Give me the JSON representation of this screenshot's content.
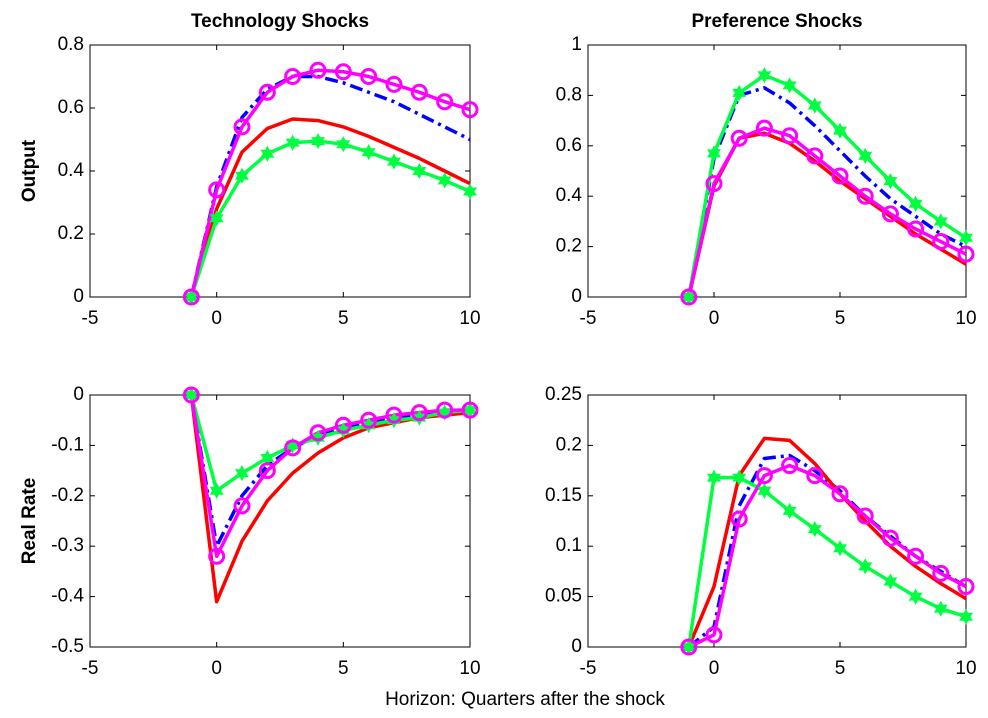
{
  "chart_data": [
    {
      "type": "line",
      "title": "Technology Shocks",
      "ylabel": "Output",
      "x": [
        -1,
        0,
        1,
        2,
        3,
        4,
        5,
        6,
        7,
        8,
        9,
        10
      ],
      "xlim": [
        -5,
        10
      ],
      "xticks": [
        -5,
        0,
        5,
        10
      ],
      "ylim": [
        0,
        0.8
      ],
      "yticks": [
        0,
        0.2,
        0.4,
        0.6,
        0.8
      ],
      "series": [
        {
          "color": "#0000ff",
          "dash": "dashdot",
          "values": [
            0,
            0.35,
            0.57,
            0.66,
            0.7,
            0.7,
            0.68,
            0.65,
            0.62,
            0.58,
            0.54,
            0.5
          ]
        },
        {
          "color": "#ff0000",
          "values": [
            0,
            0.28,
            0.46,
            0.535,
            0.565,
            0.56,
            0.54,
            0.51,
            0.475,
            0.44,
            0.4,
            0.36
          ]
        },
        {
          "color": "#00ff40",
          "marker": "star",
          "values": [
            0,
            0.25,
            0.385,
            0.455,
            0.49,
            0.495,
            0.485,
            0.46,
            0.43,
            0.4,
            0.37,
            0.335
          ]
        },
        {
          "color": "#ff00ff",
          "marker": "circle",
          "values": [
            0,
            0.34,
            0.54,
            0.65,
            0.7,
            0.72,
            0.715,
            0.7,
            0.675,
            0.65,
            0.62,
            0.595
          ]
        }
      ]
    },
    {
      "type": "line",
      "title": "Preference Shocks",
      "x": [
        -1,
        0,
        1,
        2,
        3,
        4,
        5,
        6,
        7,
        8,
        9,
        10
      ],
      "xlim": [
        -5,
        10
      ],
      "xticks": [
        -5,
        0,
        5,
        10
      ],
      "ylim": [
        0,
        1
      ],
      "yticks": [
        0,
        0.2,
        0.4,
        0.6,
        0.8,
        1
      ],
      "series": [
        {
          "color": "#0000ff",
          "dash": "dashdot",
          "values": [
            0,
            0.55,
            0.8,
            0.83,
            0.77,
            0.68,
            0.58,
            0.48,
            0.39,
            0.32,
            0.25,
            0.2
          ]
        },
        {
          "color": "#ff0000",
          "values": [
            0,
            0.44,
            0.63,
            0.65,
            0.61,
            0.54,
            0.46,
            0.39,
            0.32,
            0.25,
            0.19,
            0.13
          ]
        },
        {
          "color": "#00ff40",
          "marker": "star",
          "values": [
            0,
            0.57,
            0.81,
            0.88,
            0.84,
            0.76,
            0.66,
            0.56,
            0.46,
            0.37,
            0.3,
            0.235
          ]
        },
        {
          "color": "#ff00ff",
          "marker": "circle",
          "values": [
            0,
            0.45,
            0.63,
            0.67,
            0.64,
            0.56,
            0.48,
            0.4,
            0.33,
            0.27,
            0.22,
            0.17
          ]
        }
      ]
    },
    {
      "type": "line",
      "ylabel": "Real Rate",
      "x": [
        -1,
        0,
        1,
        2,
        3,
        4,
        5,
        6,
        7,
        8,
        9,
        10
      ],
      "xlim": [
        -5,
        10
      ],
      "xticks": [
        -5,
        0,
        5,
        10
      ],
      "ylim": [
        -0.5,
        0
      ],
      "yticks": [
        -0.5,
        -0.4,
        -0.3,
        -0.2,
        -0.1,
        0
      ],
      "series": [
        {
          "color": "#0000ff",
          "dash": "dashdot",
          "values": [
            0,
            -0.3,
            -0.2,
            -0.14,
            -0.105,
            -0.08,
            -0.065,
            -0.055,
            -0.045,
            -0.04,
            -0.035,
            -0.03
          ]
        },
        {
          "color": "#ff0000",
          "values": [
            0,
            -0.41,
            -0.29,
            -0.21,
            -0.155,
            -0.115,
            -0.085,
            -0.065,
            -0.055,
            -0.045,
            -0.04,
            -0.035
          ]
        },
        {
          "color": "#00ff40",
          "marker": "star",
          "values": [
            0,
            -0.19,
            -0.155,
            -0.125,
            -0.1,
            -0.085,
            -0.07,
            -0.06,
            -0.05,
            -0.045,
            -0.035,
            -0.03
          ]
        },
        {
          "color": "#ff00ff",
          "marker": "circle",
          "values": [
            0,
            -0.32,
            -0.22,
            -0.15,
            -0.105,
            -0.075,
            -0.06,
            -0.05,
            -0.04,
            -0.035,
            -0.03,
            -0.03
          ]
        }
      ]
    },
    {
      "type": "line",
      "x": [
        -1,
        0,
        1,
        2,
        3,
        4,
        5,
        6,
        7,
        8,
        9,
        10
      ],
      "xlim": [
        -5,
        10
      ],
      "xticks": [
        -5,
        0,
        5,
        10
      ],
      "ylim": [
        0,
        0.25
      ],
      "yticks": [
        0,
        0.05,
        0.1,
        0.15,
        0.2,
        0.25
      ],
      "series": [
        {
          "color": "#0000ff",
          "dash": "dashdot",
          "values": [
            0,
            0.02,
            0.14,
            0.187,
            0.19,
            0.175,
            0.155,
            0.13,
            0.11,
            0.09,
            0.075,
            0.06
          ]
        },
        {
          "color": "#ff0000",
          "values": [
            0,
            0.06,
            0.17,
            0.207,
            0.205,
            0.182,
            0.152,
            0.125,
            0.1,
            0.08,
            0.063,
            0.048
          ]
        },
        {
          "color": "#00ff40",
          "marker": "star",
          "values": [
            0,
            0.168,
            0.168,
            0.155,
            0.135,
            0.117,
            0.098,
            0.08,
            0.065,
            0.05,
            0.038,
            0.03
          ]
        },
        {
          "color": "#ff00ff",
          "marker": "circle",
          "values": [
            0,
            0.012,
            0.127,
            0.17,
            0.18,
            0.17,
            0.152,
            0.13,
            0.108,
            0.09,
            0.073,
            0.06
          ]
        }
      ]
    }
  ],
  "figure_xlabel": "Horizon: Quarters after the shock"
}
